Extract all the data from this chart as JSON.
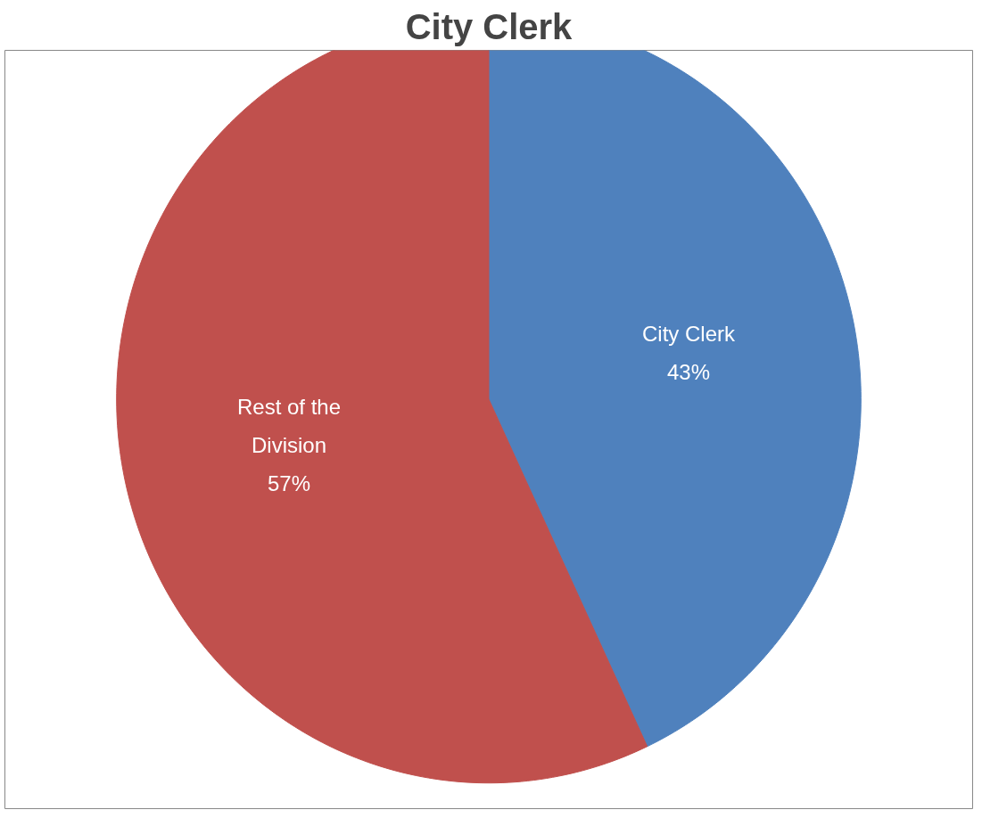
{
  "chart_data": {
    "type": "pie",
    "title": "City Clerk",
    "categories": [
      "City Clerk",
      "Rest of the Division"
    ],
    "values": [
      43,
      57
    ],
    "colors": [
      "#4f81bd",
      "#c0504d"
    ],
    "value_labels": [
      "43%",
      "57%"
    ]
  }
}
